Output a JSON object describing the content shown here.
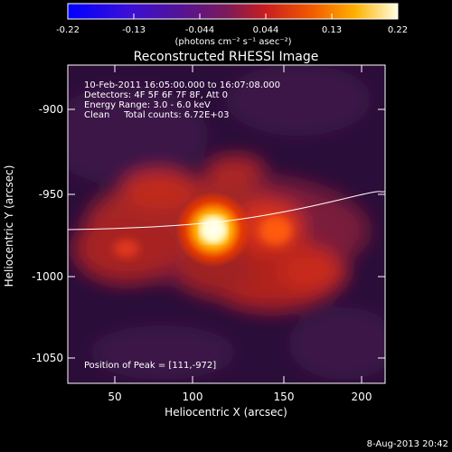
{
  "colorbar": {
    "ticks": [
      "-0.22",
      "-0.13",
      "-0.044",
      "0.044",
      "0.13",
      "0.22"
    ],
    "units": "(photons cm⁻² s⁻¹ asec⁻²)"
  },
  "plot": {
    "title": "Reconstructed RHESSI Image",
    "info_lines": [
      "10-Feb-2011 16:05:00.000 to 16:07:08.000",
      "Detectors: 4F 5F 6F 7F 8F, Att 0",
      "Energy Range: 3.0 - 6.0 keV",
      "Clean     Total counts: 6.72E+03"
    ],
    "peak_text": "Position of Peak = [111,-972]",
    "x_label": "Heliocentric X (arcsec)",
    "y_label": "Heliocentric Y (arcsec)",
    "x_ticks": [
      "50",
      "100",
      "150",
      "200"
    ],
    "y_ticks": [
      "-900",
      "-950",
      "-1000",
      "-1050"
    ]
  },
  "footer": {
    "timestamp": "8-Aug-2013 20:42"
  },
  "colors": {
    "background": "#000000",
    "limb_line": "#ffffff"
  }
}
